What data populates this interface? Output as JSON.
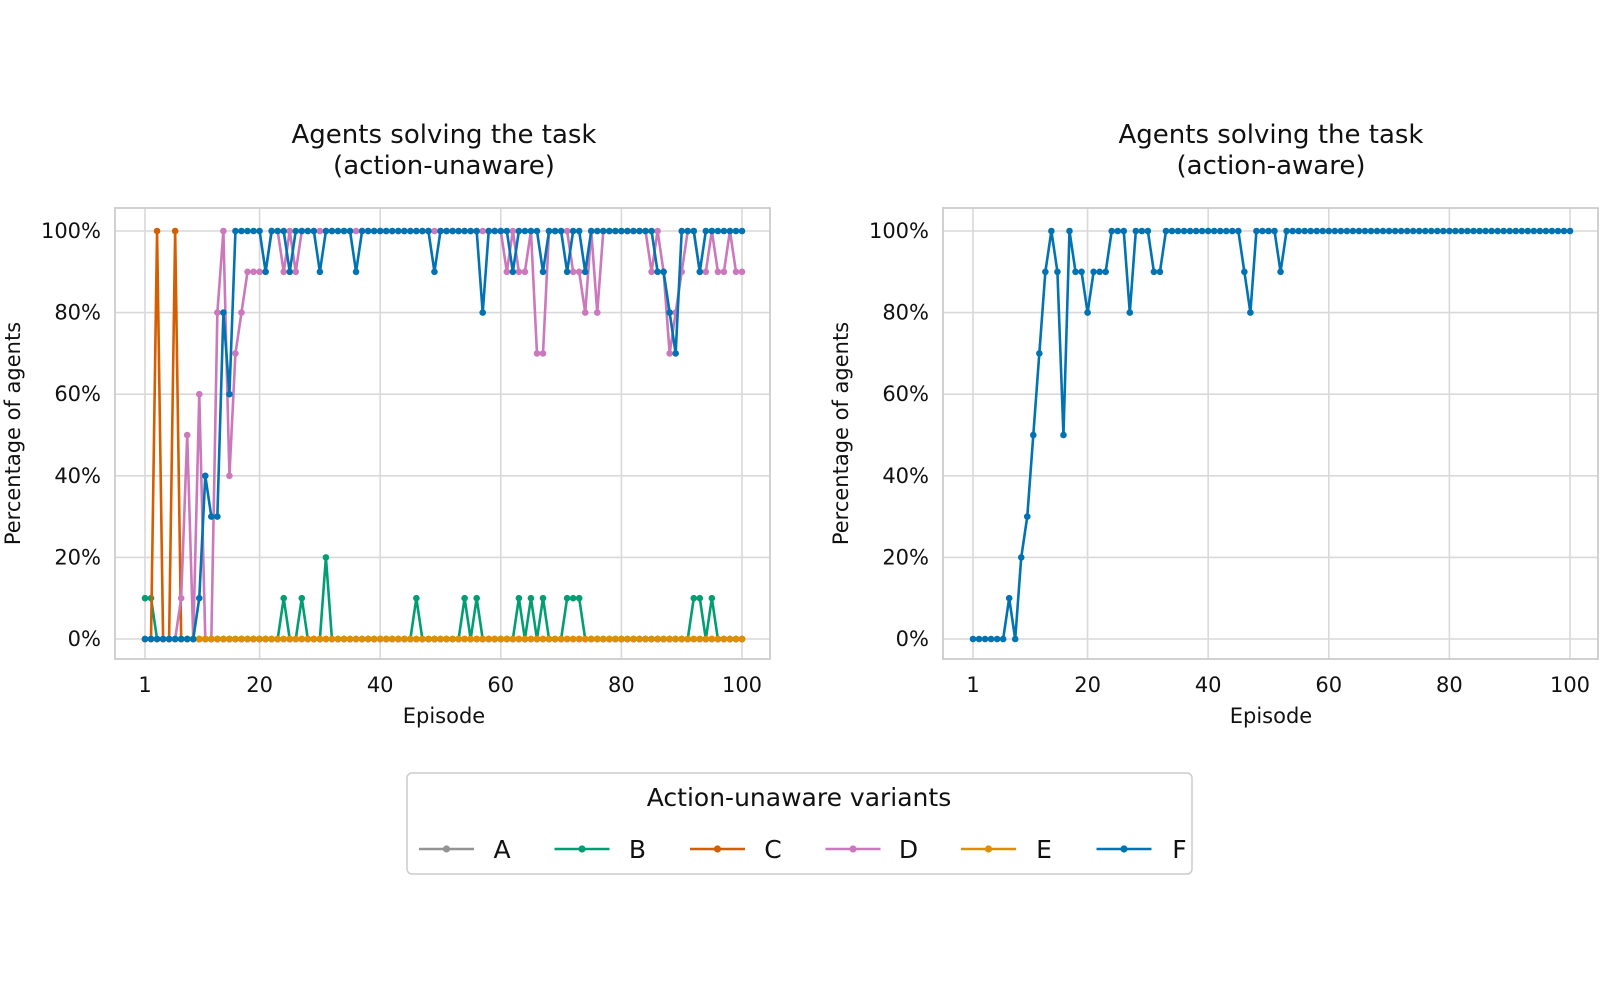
{
  "legend": {
    "title": "Action-unaware variants",
    "entries": [
      "A",
      "B",
      "C",
      "D",
      "E",
      "F"
    ],
    "placement": "bottom-center"
  },
  "chart_data": [
    {
      "type": "line",
      "title": "Agents solving the task\n(action-unaware)",
      "xlabel": "Episode",
      "ylabel": "Percentage of agents",
      "xticks": [
        "1",
        "20",
        "40",
        "60",
        "80",
        "100"
      ],
      "yticks": [
        "0%",
        "20%",
        "40%",
        "60%",
        "80%",
        "100%"
      ],
      "xlim": [
        1,
        100
      ],
      "ylim": [
        0,
        100
      ],
      "grid": true,
      "series": [
        {
          "name": "A",
          "color": "#949494",
          "values": [
            0,
            0,
            0,
            0,
            0,
            0,
            0,
            0,
            0,
            0,
            0,
            0,
            0,
            0,
            0,
            0,
            0,
            0,
            0,
            0,
            0,
            0,
            0,
            0,
            0,
            0,
            0,
            0,
            0,
            0,
            0,
            0,
            0,
            0,
            0,
            0,
            0,
            0,
            0,
            0,
            0,
            0,
            0,
            0,
            0,
            0,
            0,
            0,
            0,
            0,
            0,
            0,
            0,
            0,
            0,
            0,
            0,
            0,
            0,
            0,
            0,
            0,
            0,
            0,
            0,
            0,
            0,
            0,
            0,
            0,
            0,
            0,
            0,
            0,
            0,
            0,
            0,
            0,
            0,
            0,
            0,
            0,
            0,
            0,
            0,
            0,
            0,
            0,
            0,
            0,
            0,
            0,
            0,
            0,
            0,
            0,
            0,
            0,
            0,
            0
          ]
        },
        {
          "name": "B",
          "color": "#029e73",
          "values": [
            10,
            10,
            0,
            0,
            0,
            0,
            0,
            0,
            0,
            0,
            0,
            0,
            0,
            0,
            0,
            0,
            0,
            0,
            0,
            0,
            0,
            0,
            0,
            10,
            0,
            0,
            10,
            0,
            0,
            0,
            20,
            0,
            0,
            0,
            0,
            0,
            0,
            0,
            0,
            0,
            0,
            0,
            0,
            0,
            0,
            10,
            0,
            0,
            0,
            0,
            0,
            0,
            0,
            10,
            0,
            10,
            0,
            0,
            0,
            0,
            0,
            0,
            10,
            0,
            10,
            0,
            10,
            0,
            0,
            0,
            10,
            10,
            10,
            0,
            0,
            0,
            0,
            0,
            0,
            0,
            0,
            0,
            0,
            0,
            0,
            0,
            0,
            0,
            0,
            0,
            0,
            10,
            10,
            0,
            10,
            0,
            0,
            0,
            0,
            0
          ]
        },
        {
          "name": "C",
          "color": "#d55e00",
          "values": [
            0,
            0,
            100,
            0,
            0,
            100,
            0,
            0,
            0,
            0,
            0,
            0,
            0,
            0,
            0,
            0,
            0,
            0,
            0,
            0,
            0,
            0,
            0,
            0,
            0,
            0,
            0,
            0,
            0,
            0,
            0,
            0,
            0,
            0,
            0,
            0,
            0,
            0,
            0,
            0,
            0,
            0,
            0,
            0,
            0,
            0,
            0,
            0,
            0,
            0,
            0,
            0,
            0,
            0,
            0,
            0,
            0,
            0,
            0,
            0,
            0,
            0,
            0,
            0,
            0,
            0,
            0,
            0,
            0,
            0,
            0,
            0,
            0,
            0,
            0,
            0,
            0,
            0,
            0,
            0,
            0,
            0,
            0,
            0,
            0,
            0,
            0,
            0,
            0,
            0,
            0,
            0,
            0,
            0,
            0,
            0,
            0,
            0,
            0,
            0
          ]
        },
        {
          "name": "D",
          "color": "#cc78bc",
          "values": [
            0,
            0,
            0,
            0,
            0,
            0,
            10,
            50,
            0,
            60,
            0,
            0,
            80,
            100,
            40,
            70,
            80,
            90,
            90,
            90,
            90,
            100,
            100,
            90,
            100,
            90,
            100,
            100,
            100,
            100,
            100,
            100,
            100,
            100,
            100,
            100,
            100,
            100,
            100,
            100,
            100,
            100,
            100,
            100,
            100,
            100,
            100,
            100,
            100,
            100,
            100,
            100,
            100,
            100,
            100,
            100,
            100,
            100,
            100,
            100,
            90,
            100,
            90,
            90,
            100,
            70,
            70,
            100,
            100,
            100,
            100,
            90,
            90,
            80,
            100,
            80,
            100,
            100,
            100,
            100,
            100,
            100,
            100,
            100,
            90,
            100,
            90,
            70,
            80,
            90,
            100,
            100,
            90,
            90,
            100,
            90,
            90,
            100,
            90,
            90
          ]
        },
        {
          "name": "E",
          "color": "#de8f05",
          "values": [
            0,
            0,
            0,
            0,
            0,
            0,
            0,
            0,
            0,
            0,
            0,
            0,
            0,
            0,
            0,
            0,
            0,
            0,
            0,
            0,
            0,
            0,
            0,
            0,
            0,
            0,
            0,
            0,
            0,
            0,
            0,
            0,
            0,
            0,
            0,
            0,
            0,
            0,
            0,
            0,
            0,
            0,
            0,
            0,
            0,
            0,
            0,
            0,
            0,
            0,
            0,
            0,
            0,
            0,
            0,
            0,
            0,
            0,
            0,
            0,
            0,
            0,
            0,
            0,
            0,
            0,
            0,
            0,
            0,
            0,
            0,
            0,
            0,
            0,
            0,
            0,
            0,
            0,
            0,
            0,
            0,
            0,
            0,
            0,
            0,
            0,
            0,
            0,
            0,
            0,
            0,
            0,
            0,
            0,
            0,
            0,
            0,
            0,
            0,
            0
          ]
        },
        {
          "name": "F",
          "color": "#0173b2",
          "values": [
            0,
            0,
            0,
            0,
            0,
            0,
            0,
            0,
            0,
            10,
            40,
            30,
            30,
            80,
            60,
            100,
            100,
            100,
            100,
            100,
            90,
            100,
            100,
            100,
            90,
            100,
            100,
            100,
            100,
            90,
            100,
            100,
            100,
            100,
            100,
            90,
            100,
            100,
            100,
            100,
            100,
            100,
            100,
            100,
            100,
            100,
            100,
            100,
            90,
            100,
            100,
            100,
            100,
            100,
            100,
            100,
            80,
            100,
            100,
            100,
            100,
            90,
            100,
            100,
            100,
            100,
            90,
            100,
            100,
            100,
            90,
            100,
            100,
            90,
            100,
            100,
            100,
            100,
            100,
            100,
            100,
            100,
            100,
            100,
            100,
            90,
            90,
            80,
            70,
            100,
            100,
            100,
            90,
            100,
            100,
            100,
            100,
            100,
            100,
            100
          ]
        }
      ]
    },
    {
      "type": "line",
      "title": "Agents solving the task\n(action-aware)",
      "xlabel": "Episode",
      "ylabel": "Percentage of agents",
      "xticks": [
        "1",
        "20",
        "40",
        "60",
        "80",
        "100"
      ],
      "yticks": [
        "0%",
        "20%",
        "40%",
        "60%",
        "80%",
        "100%"
      ],
      "xlim": [
        1,
        100
      ],
      "ylim": [
        0,
        100
      ],
      "grid": true,
      "series": [
        {
          "color": "#0173b2",
          "values": [
            0,
            0,
            0,
            0,
            0,
            0,
            10,
            0,
            20,
            30,
            50,
            70,
            90,
            100,
            90,
            50,
            100,
            90,
            90,
            80,
            90,
            90,
            90,
            100,
            100,
            100,
            80,
            100,
            100,
            100,
            90,
            90,
            100,
            100,
            100,
            100,
            100,
            100,
            100,
            100,
            100,
            100,
            100,
            100,
            100,
            90,
            80,
            100,
            100,
            100,
            100,
            90,
            100,
            100,
            100,
            100,
            100,
            100,
            100,
            100,
            100,
            100,
            100,
            100,
            100,
            100,
            100,
            100,
            100,
            100,
            100,
            100,
            100,
            100,
            100,
            100,
            100,
            100,
            100,
            100,
            100,
            100,
            100,
            100,
            100,
            100,
            100,
            100,
            100,
            100,
            100,
            100,
            100,
            100,
            100,
            100,
            100,
            100,
            100,
            100
          ]
        }
      ]
    }
  ]
}
